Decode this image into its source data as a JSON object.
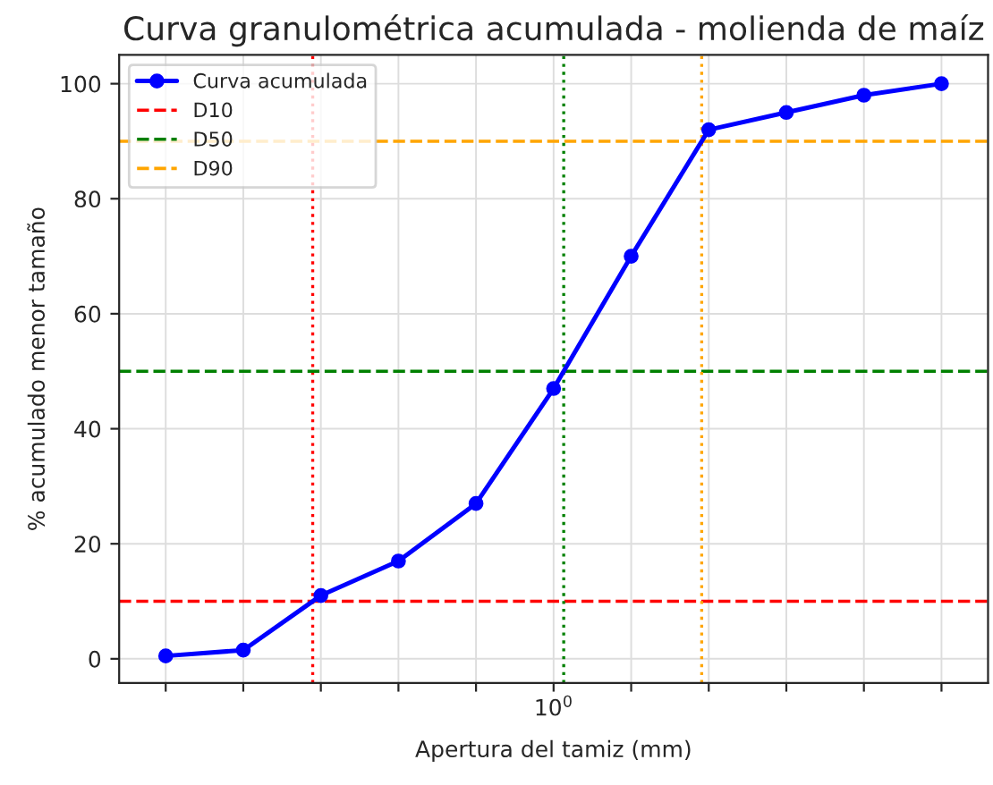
{
  "chart_data": {
    "type": "line",
    "title": "Curva granulométrica acumulada - molienda de maíz",
    "xlabel": "Apertura del tamiz (mm)",
    "ylabel": "% acumulado menor tamaño",
    "categories": [
      null,
      null,
      null,
      null,
      null,
      null,
      null,
      null,
      null,
      null,
      null
    ],
    "series": [
      {
        "name": "Curva acumulada",
        "color": "#0000ff",
        "values": [
          0.5,
          1.5,
          11,
          17,
          27,
          47,
          70,
          92,
          95,
          98,
          100
        ]
      }
    ],
    "ylim": [
      -4.2,
      105
    ],
    "yticks": [
      0,
      20,
      40,
      60,
      80,
      100
    ],
    "annotations": [
      "10$^{0}$"
    ],
    "ref_lines": [
      {
        "axis": "y",
        "value": 10,
        "label": "D10",
        "color": "#ff0000",
        "line_style": "dashed"
      },
      {
        "axis": "y",
        "value": 50,
        "label": "D50",
        "color": "#008000",
        "line_style": "dashed"
      },
      {
        "axis": "y",
        "value": 90,
        "label": "D90",
        "color": "#ffa500",
        "line_style": "dashed"
      }
    ],
    "grid": true,
    "legend": "top left",
    "marker": "circle",
    "line_style": "solid"
  }
}
